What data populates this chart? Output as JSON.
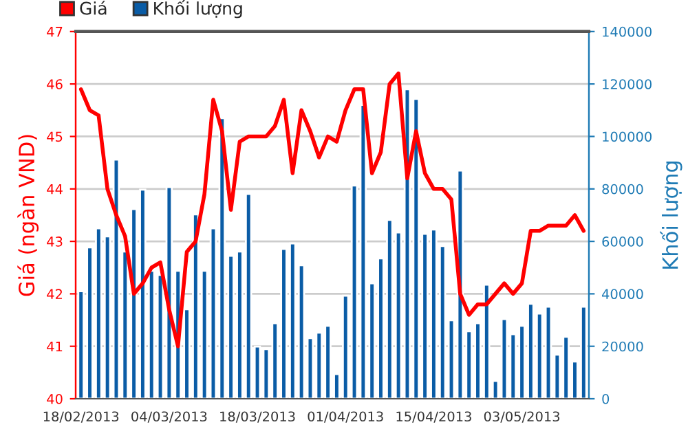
{
  "chart_data": {
    "type": "bar",
    "categories": [
      "18/02/2013",
      null,
      null,
      null,
      null,
      null,
      null,
      null,
      null,
      null,
      "04/03/2013",
      null,
      null,
      null,
      null,
      null,
      null,
      null,
      null,
      null,
      "18/03/2013",
      null,
      null,
      null,
      null,
      null,
      null,
      null,
      null,
      null,
      "01/04/2013",
      null,
      null,
      null,
      null,
      null,
      null,
      null,
      null,
      null,
      "15/04/2013",
      null,
      null,
      null,
      null,
      null,
      null,
      null,
      null,
      null,
      "03/05/2013",
      null,
      null,
      null,
      null,
      null,
      null,
      null
    ],
    "series": [
      {
        "name": "Giá",
        "type": "line",
        "color": "#ff0000",
        "values": [
          45.9,
          45.5,
          45.4,
          44.0,
          43.5,
          43.1,
          42.0,
          42.2,
          42.5,
          42.6,
          41.7,
          41.0,
          42.8,
          43.0,
          43.9,
          45.7,
          45.1,
          43.6,
          44.9,
          45.0,
          45.0,
          45.0,
          45.2,
          45.7,
          44.3,
          45.5,
          45.1,
          44.6,
          45.0,
          44.9,
          45.5,
          45.9,
          45.9,
          44.3,
          44.7,
          46.0,
          46.2,
          44.2,
          45.1,
          44.3,
          44.0,
          44.0,
          43.8,
          42.0,
          41.6,
          41.8,
          41.8,
          42.0,
          42.2,
          42.0,
          42.2,
          43.2,
          43.2,
          43.3,
          43.3,
          43.3,
          43.5,
          43.2
        ]
      },
      {
        "name": "Khối lượng",
        "axis": "y2",
        "color": "#0a5ca6",
        "values": [
          41000,
          57700,
          65000,
          61900,
          91200,
          56100,
          72300,
          79700,
          48800,
          47200,
          80700,
          48800,
          34100,
          70300,
          48800,
          65000,
          107000,
          54500,
          56100,
          78100,
          19900,
          18900,
          28800,
          57100,
          59200,
          50900,
          23100,
          25200,
          27800,
          9400,
          39300,
          81300,
          112000,
          44000,
          53500,
          68200,
          63400,
          118000,
          114300,
          62900,
          64500,
          58200,
          29900,
          87000,
          25700,
          28800,
          43500,
          6800,
          30400,
          24600,
          27800,
          36200,
          32500,
          35100,
          16800,
          23600,
          14200,
          35100
        ]
      }
    ],
    "ylabel": "Giá (ngàn VND)",
    "y2label": "Khối lượng",
    "ylim": [
      40,
      47
    ],
    "yticks": [
      40,
      41,
      42,
      43,
      44,
      45,
      46,
      47
    ],
    "y2lim": [
      0,
      140000
    ],
    "y2ticks": [
      0,
      20000,
      40000,
      60000,
      80000,
      100000,
      120000,
      140000
    ],
    "grid": "y",
    "legend": "top left"
  }
}
